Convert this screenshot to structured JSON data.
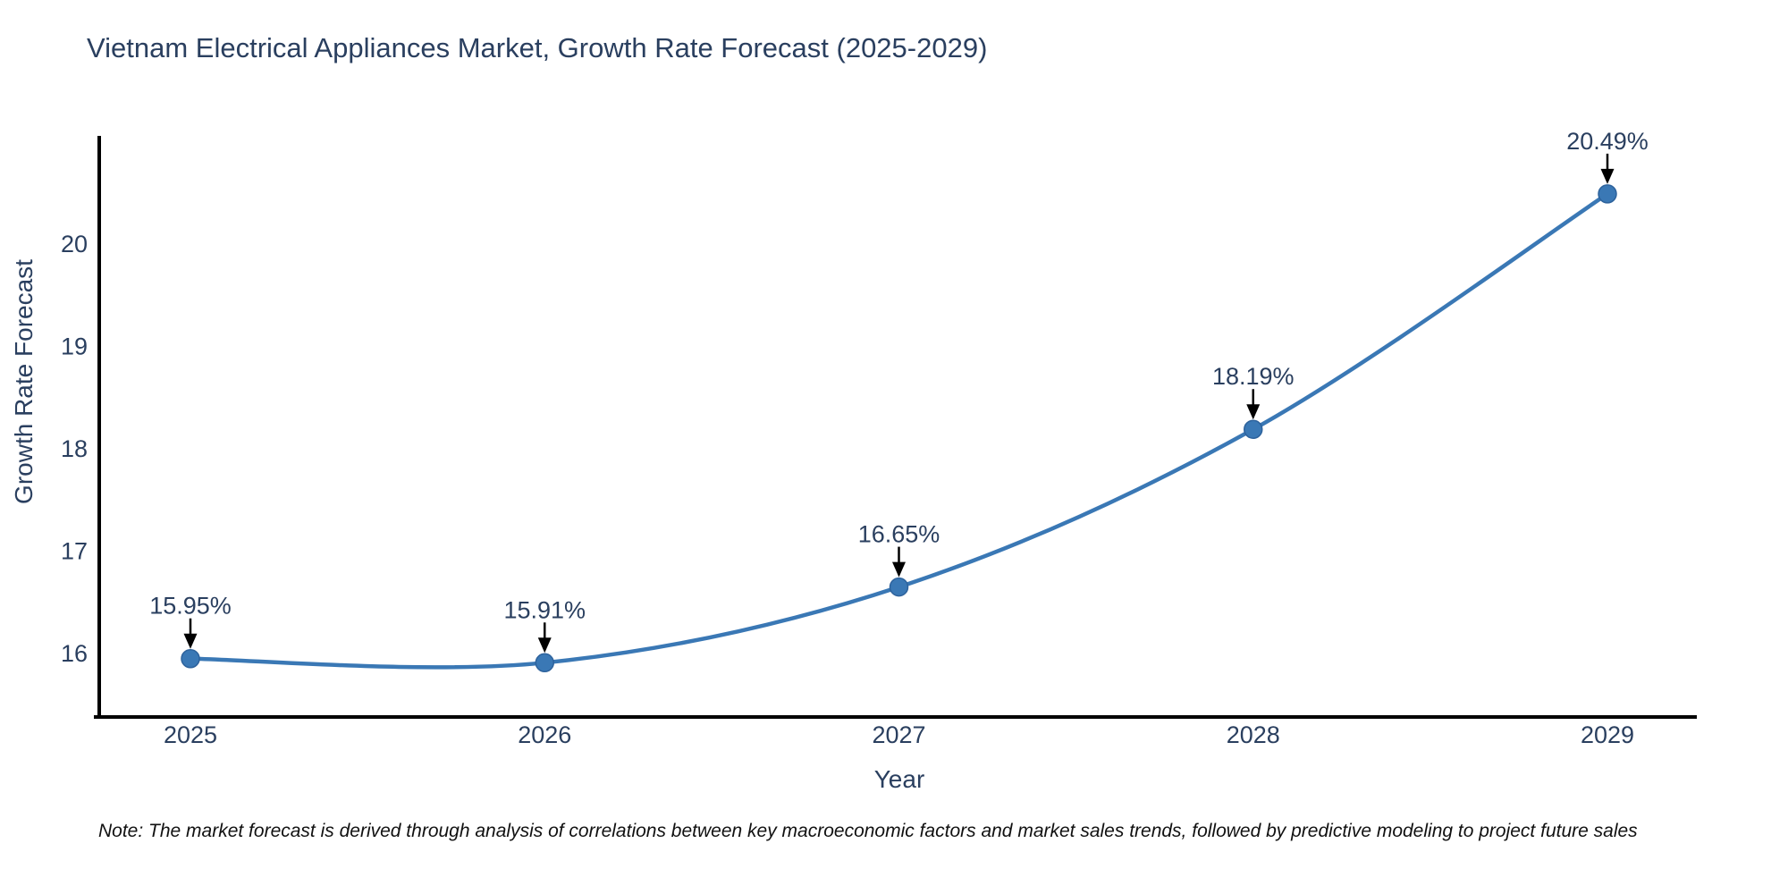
{
  "chart_data": {
    "type": "line",
    "title": "Vietnam Electrical Appliances Market, Growth Rate Forecast (2025-2029)",
    "xlabel": "Year",
    "ylabel": "Growth Rate Forecast",
    "x": [
      2025,
      2026,
      2027,
      2028,
      2029
    ],
    "series": [
      {
        "name": "Growth Rate Forecast",
        "values": [
          15.95,
          15.91,
          16.65,
          18.19,
          20.49
        ]
      }
    ],
    "point_labels": [
      "15.95%",
      "15.91%",
      "16.65%",
      "18.19%",
      "20.49%"
    ],
    "yticks": [
      16,
      17,
      18,
      19,
      20
    ],
    "ylim": [
      15.4,
      21.1
    ],
    "grid": false,
    "legend": "none",
    "colors": {
      "line": "#3a78b5",
      "marker_fill": "#3a78b5",
      "marker_edge": "#2d629c",
      "axis_line": "#000000",
      "tick_text": "#2a3f5f",
      "annotation_text": "#2a3f5f",
      "annotation_arrow": "#000000",
      "background": "#ffffff"
    }
  },
  "footnote": "Note: The market forecast is derived through analysis of correlations between key macroeconomic factors and market sales trends, followed by predictive modeling to project future sales"
}
